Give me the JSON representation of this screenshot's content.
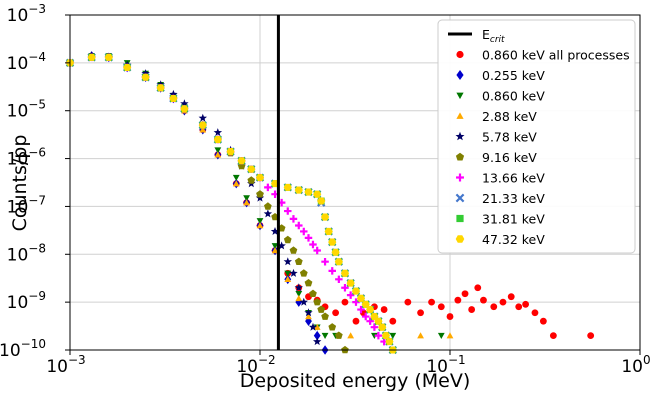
{
  "chart_data": {
    "type": "scatter",
    "xlabel": "Deposited energy (MeV)",
    "ylabel": "Counts/pp",
    "xscale": "log",
    "yscale": "log",
    "xlim": [
      0.001,
      1
    ],
    "ylim": [
      1e-10,
      0.001
    ],
    "x_ticks": [
      {
        "value": 0.001,
        "base": "10",
        "exp": "−3"
      },
      {
        "value": 0.01,
        "base": "10",
        "exp": "−2"
      },
      {
        "value": 0.1,
        "base": "10",
        "exp": "−1"
      },
      {
        "value": 1,
        "base": "10",
        "exp": "0"
      }
    ],
    "y_ticks": [
      {
        "value": 1e-10,
        "base": "10",
        "exp": "−10"
      },
      {
        "value": 1e-09,
        "base": "10",
        "exp": "−9"
      },
      {
        "value": 1e-08,
        "base": "10",
        "exp": "−8"
      },
      {
        "value": 1e-07,
        "base": "10",
        "exp": "−7"
      },
      {
        "value": 1e-06,
        "base": "10",
        "exp": "−6"
      },
      {
        "value": 1e-05,
        "base": "10",
        "exp": "−5"
      },
      {
        "value": 0.0001,
        "base": "10",
        "exp": "−4"
      },
      {
        "value": 0.001,
        "base": "10",
        "exp": "−3"
      }
    ],
    "grid": true,
    "legend_position": "top-right",
    "vline": {
      "label_main": "E",
      "label_sub": "crit",
      "x": 0.0125,
      "color": "#000000"
    },
    "series": [
      {
        "name": "0.860 keV all processes",
        "marker": "circle",
        "color": "#ff0000",
        "x": [
          0.001,
          0.0013,
          0.0016,
          0.002,
          0.0025,
          0.003,
          0.0035,
          0.004,
          0.005,
          0.006,
          0.0075,
          0.0085,
          0.01,
          0.012,
          0.014,
          0.016,
          0.018,
          0.02,
          0.022,
          0.025,
          0.028,
          0.032,
          0.035,
          0.04,
          0.045,
          0.05,
          0.06,
          0.07,
          0.08,
          0.09,
          0.1,
          0.11,
          0.12,
          0.13,
          0.14,
          0.15,
          0.17,
          0.19,
          0.21,
          0.23,
          0.25,
          0.28,
          0.31,
          0.35,
          0.55
        ],
        "y": [
          0.0001,
          0.00014,
          0.00013,
          8e-05,
          5e-05,
          3e-05,
          1.8e-05,
          1e-05,
          4e-06,
          1.2e-06,
          3e-07,
          1.2e-07,
          4e-08,
          1.2e-08,
          4e-09,
          2e-09,
          1.3e-09,
          1.1e-09,
          8e-10,
          6e-10,
          1e-09,
          4e-10,
          6e-10,
          8e-10,
          7e-10,
          4e-10,
          1e-09,
          6e-10,
          1e-09,
          8e-10,
          5e-10,
          1.1e-09,
          1.5e-09,
          7e-10,
          2e-09,
          1.1e-09,
          8e-10,
          1e-09,
          1.3e-09,
          8e-10,
          9e-10,
          6e-10,
          4e-10,
          2e-10,
          2e-10
        ]
      },
      {
        "name": "0.255 keV",
        "marker": "diamond",
        "color": "#0000cc",
        "x": [
          0.001,
          0.0013,
          0.0016,
          0.002,
          0.0025,
          0.003,
          0.0035,
          0.004,
          0.005,
          0.006,
          0.0075,
          0.0085,
          0.01,
          0.012,
          0.014,
          0.016,
          0.018,
          0.02,
          0.022
        ],
        "y": [
          0.0001,
          0.00014,
          0.00013,
          8e-05,
          5e-05,
          3e-05,
          1.8e-05,
          1e-05,
          4e-06,
          1.2e-06,
          3e-07,
          1.2e-07,
          4e-08,
          1.2e-08,
          3e-09,
          1e-09,
          4e-10,
          2e-10,
          1e-10
        ]
      },
      {
        "name": "0.860 keV",
        "marker": "triangle-down",
        "color": "#007700",
        "x": [
          0.001,
          0.0013,
          0.0016,
          0.002,
          0.0025,
          0.003,
          0.0035,
          0.004,
          0.005,
          0.006,
          0.0075,
          0.0085,
          0.01,
          0.012,
          0.014,
          0.016,
          0.018,
          0.02,
          0.022,
          0.025,
          0.04,
          0.05,
          0.09
        ],
        "y": [
          0.0001,
          0.00014,
          0.00014,
          0.0001,
          6e-05,
          3.5e-05,
          2e-05,
          1.2e-05,
          5e-06,
          1.5e-06,
          4e-07,
          1.5e-07,
          5e-08,
          1.5e-08,
          4e-09,
          1.5e-09,
          6e-10,
          3e-10,
          2e-10,
          2e-10,
          2e-10,
          2e-10,
          2e-10
        ]
      },
      {
        "name": "2.88 keV",
        "marker": "triangle-up",
        "color": "#ffaa00",
        "x": [
          0.001,
          0.0013,
          0.0016,
          0.002,
          0.0025,
          0.003,
          0.0035,
          0.004,
          0.005,
          0.006,
          0.0075,
          0.0085,
          0.01,
          0.012,
          0.014,
          0.016,
          0.018,
          0.02,
          0.03,
          0.07,
          0.1
        ],
        "y": [
          0.0001,
          0.00013,
          0.00013,
          8e-05,
          5e-05,
          3e-05,
          1.8e-05,
          1e-05,
          4e-06,
          1.2e-06,
          3e-07,
          1.2e-07,
          4e-08,
          1.2e-08,
          3e-09,
          1.2e-09,
          5e-10,
          3e-10,
          2e-10,
          2e-10,
          2e-10
        ]
      },
      {
        "name": "5.78 keV",
        "marker": "star",
        "color": "#000066",
        "x": [
          0.001,
          0.0013,
          0.0016,
          0.002,
          0.0025,
          0.003,
          0.0035,
          0.004,
          0.005,
          0.006,
          0.007,
          0.008,
          0.009,
          0.01,
          0.011,
          0.012,
          0.013,
          0.014,
          0.015,
          0.016,
          0.017,
          0.018,
          0.019,
          0.02
        ],
        "y": [
          0.0001,
          0.00014,
          0.00013,
          9e-05,
          6e-05,
          3.5e-05,
          2.2e-05,
          1.4e-05,
          7e-06,
          3.5e-06,
          1.5e-06,
          7e-07,
          3e-07,
          1.5e-07,
          7e-08,
          3e-08,
          1.5e-08,
          7e-09,
          4e-09,
          2e-09,
          1e-09,
          6e-10,
          3e-10,
          1.5e-10
        ]
      },
      {
        "name": "9.16 keV",
        "marker": "pentagon",
        "color": "#808000",
        "x": [
          0.001,
          0.0013,
          0.0016,
          0.002,
          0.0025,
          0.003,
          0.0035,
          0.004,
          0.005,
          0.006,
          0.007,
          0.008,
          0.009,
          0.01,
          0.011,
          0.012,
          0.013,
          0.014,
          0.015,
          0.016,
          0.017,
          0.018,
          0.019,
          0.02,
          0.021,
          0.022,
          0.024,
          0.026,
          0.028
        ],
        "y": [
          0.0001,
          0.00013,
          0.00013,
          8e-05,
          5e-05,
          3e-05,
          1.8e-05,
          1.1e-05,
          5e-06,
          2.5e-06,
          1.3e-06,
          7e-07,
          3.5e-07,
          1.8e-07,
          1e-07,
          6e-08,
          3.5e-08,
          2e-08,
          1.2e-08,
          7e-09,
          4e-09,
          2.5e-09,
          1.5e-09,
          1e-09,
          7e-10,
          5e-10,
          3e-10,
          2e-10,
          1e-10
        ]
      },
      {
        "name": "13.66 keV",
        "marker": "plus",
        "color": "#ff00ff",
        "x": [
          0.001,
          0.0013,
          0.0016,
          0.002,
          0.0025,
          0.003,
          0.0035,
          0.004,
          0.005,
          0.006,
          0.007,
          0.008,
          0.009,
          0.01,
          0.011,
          0.012,
          0.013,
          0.014,
          0.015,
          0.016,
          0.017,
          0.018,
          0.019,
          0.02,
          0.022,
          0.024,
          0.026,
          0.028,
          0.03,
          0.032,
          0.034,
          0.036,
          0.038,
          0.04,
          0.042,
          0.045
        ],
        "y": [
          0.0001,
          0.00013,
          0.00013,
          8e-05,
          5e-05,
          3e-05,
          1.8e-05,
          1.1e-05,
          5e-06,
          2.5e-06,
          1.4e-06,
          9e-07,
          6e-07,
          4e-07,
          2.5e-07,
          1.8e-07,
          1.2e-07,
          8e-08,
          5.5e-08,
          4e-08,
          3e-08,
          2.2e-08,
          1.6e-08,
          1.2e-08,
          7e-09,
          4.5e-09,
          3e-09,
          2e-09,
          1.4e-09,
          1e-09,
          7e-10,
          5e-10,
          4e-10,
          3e-10,
          2e-10,
          1.5e-10
        ]
      },
      {
        "name": "21.33 keV",
        "marker": "x",
        "color": "#4477cc",
        "x": [
          0.001,
          0.0013,
          0.0016,
          0.002,
          0.0025,
          0.003,
          0.0035,
          0.004,
          0.005,
          0.006,
          0.007,
          0.008,
          0.009,
          0.01,
          0.012,
          0.014,
          0.016,
          0.018,
          0.02,
          0.021,
          0.022,
          0.023,
          0.024,
          0.025,
          0.026,
          0.028,
          0.03,
          0.032,
          0.034,
          0.036,
          0.038,
          0.04,
          0.042,
          0.044,
          0.046,
          0.048,
          0.05
        ],
        "y": [
          0.0001,
          0.00013,
          0.00013,
          8e-05,
          5e-05,
          3e-05,
          1.8e-05,
          1.1e-05,
          5e-06,
          2.5e-06,
          1.4e-06,
          9e-07,
          6e-07,
          4e-07,
          3e-07,
          2.5e-07,
          2.2e-07,
          2e-07,
          1.8e-07,
          1.2e-07,
          6e-08,
          3e-08,
          1.8e-08,
          1.1e-08,
          7e-09,
          4e-09,
          2.5e-09,
          1.7e-09,
          1.2e-09,
          9e-10,
          7e-10,
          5e-10,
          4e-10,
          3e-10,
          2e-10,
          1.5e-10,
          1e-10
        ]
      },
      {
        "name": "31.81 keV",
        "marker": "square",
        "color": "#33cc33",
        "x": [
          0.001,
          0.0013,
          0.0016,
          0.002,
          0.0025,
          0.003,
          0.0035,
          0.004,
          0.005,
          0.006,
          0.007,
          0.008,
          0.009,
          0.01,
          0.012,
          0.014,
          0.016,
          0.018,
          0.02,
          0.021,
          0.022,
          0.023,
          0.024,
          0.025,
          0.026,
          0.028,
          0.03,
          0.032,
          0.034,
          0.036,
          0.038,
          0.04,
          0.042,
          0.044,
          0.046,
          0.048,
          0.05
        ],
        "y": [
          0.0001,
          0.00013,
          0.00013,
          8e-05,
          5e-05,
          3e-05,
          1.8e-05,
          1.1e-05,
          5e-06,
          2.5e-06,
          1.4e-06,
          9e-07,
          6e-07,
          4e-07,
          3e-07,
          2.5e-07,
          2.2e-07,
          2e-07,
          1.8e-07,
          1.3e-07,
          6e-08,
          3e-08,
          1.8e-08,
          1.1e-08,
          7e-09,
          4e-09,
          2.5e-09,
          1.7e-09,
          1.2e-09,
          9e-10,
          7e-10,
          5e-10,
          4e-10,
          3e-10,
          2e-10,
          1.5e-10,
          1e-10
        ]
      },
      {
        "name": "47.32 keV",
        "marker": "hexagon",
        "color": "#ffd700",
        "x": [
          0.001,
          0.0013,
          0.0016,
          0.002,
          0.0025,
          0.003,
          0.0035,
          0.004,
          0.005,
          0.006,
          0.007,
          0.008,
          0.009,
          0.01,
          0.012,
          0.014,
          0.016,
          0.018,
          0.02,
          0.021,
          0.022,
          0.023,
          0.024,
          0.025,
          0.026,
          0.028,
          0.03,
          0.032,
          0.034,
          0.036,
          0.038,
          0.04,
          0.042,
          0.044,
          0.046,
          0.048,
          0.05
        ],
        "y": [
          0.0001,
          0.00013,
          0.00013,
          8e-05,
          5e-05,
          3e-05,
          1.8e-05,
          1.1e-05,
          5e-06,
          2.5e-06,
          1.4e-06,
          9e-07,
          6e-07,
          4e-07,
          3e-07,
          2.5e-07,
          2.2e-07,
          2e-07,
          1.8e-07,
          1.3e-07,
          6e-08,
          3e-08,
          1.8e-08,
          1.1e-08,
          7e-09,
          4e-09,
          2.5e-09,
          1.7e-09,
          1.2e-09,
          9e-10,
          7e-10,
          5e-10,
          4e-10,
          3e-10,
          2e-10,
          1.5e-10,
          1e-10
        ]
      }
    ]
  }
}
